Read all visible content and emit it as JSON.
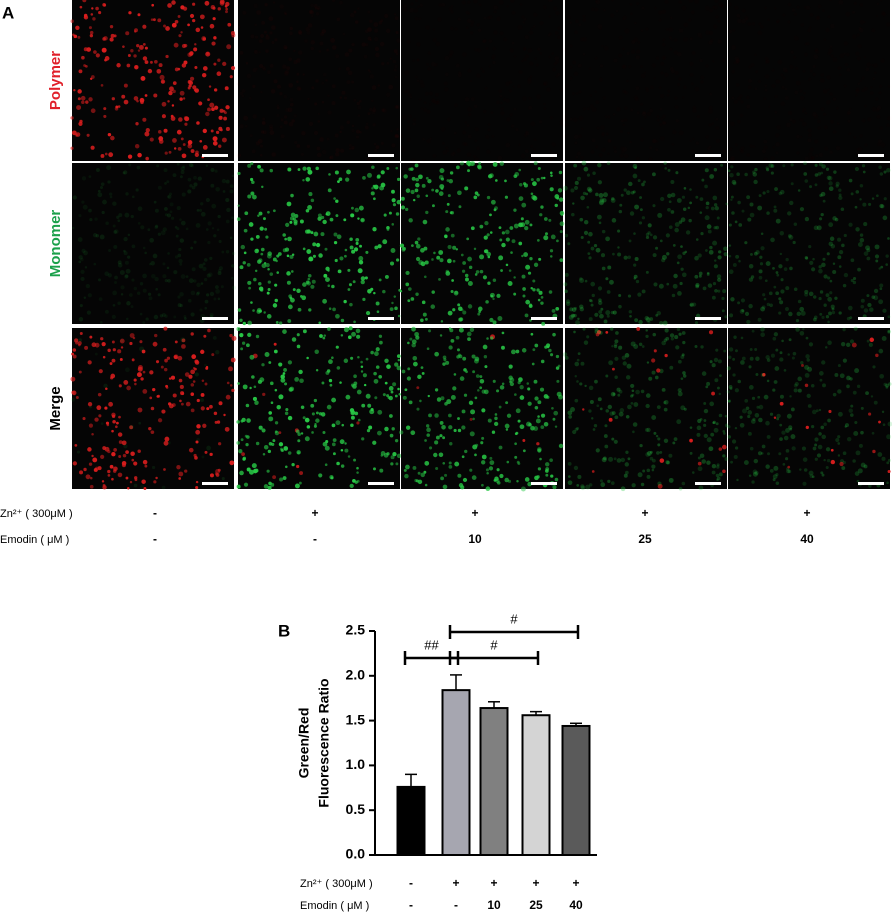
{
  "panel_a": {
    "label": "A",
    "rows": [
      {
        "label": "Polymer",
        "color": "#e0202a"
      },
      {
        "label": "Monomer",
        "color": "#1aa04a"
      },
      {
        "label": "Merge",
        "color": "#000000"
      }
    ],
    "conditions": [
      {
        "label": "Zn²⁺ ( 300μM )",
        "values": [
          "-",
          "+",
          "+",
          "+",
          "+"
        ]
      },
      {
        "label": "Emodin ( μM )",
        "values": [
          "-",
          "-",
          "10",
          "25",
          "40"
        ]
      }
    ]
  },
  "chart_data": {
    "type": "bar",
    "panel_label": "B",
    "y_label": [
      "Green/Red",
      "Fluorescence Ratio"
    ],
    "values": [
      0.76,
      1.84,
      1.64,
      1.56,
      1.44
    ],
    "errors": [
      0.14,
      0.17,
      0.07,
      0.04,
      0.03
    ],
    "colors": [
      "#000000",
      "#a6a6b0",
      "#808080",
      "#d4d4d4",
      "#5a5a5a"
    ],
    "ylim": [
      0,
      2.5
    ],
    "yticks": [
      {
        "value": 0,
        "label": "0.0"
      },
      0.5,
      {
        "value": 1,
        "label": "1.0"
      },
      1.5,
      {
        "value": 2,
        "label": "2.0"
      },
      2.5
    ],
    "annotations": [
      "##",
      "#",
      "#"
    ],
    "conditions": [
      {
        "label": "Zn²⁺ ( 300μM )",
        "values": [
          "-",
          "+",
          "+",
          "+",
          "+"
        ]
      },
      {
        "label": "Emodin ( μM )",
        "values": [
          "-",
          "-",
          "10",
          "25",
          "40"
        ]
      }
    ]
  }
}
